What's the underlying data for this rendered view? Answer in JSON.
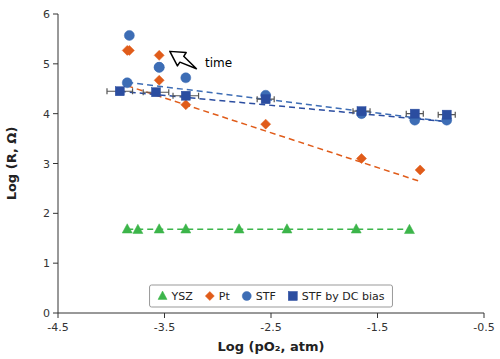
{
  "chart_data": {
    "type": "scatter",
    "xlabel": "Log (pO₂, atm)",
    "ylabel": "Log (R, Ω)",
    "xlim": [
      -4.5,
      -0.5
    ],
    "ylim": [
      0,
      6
    ],
    "xticks": [
      -4.5,
      -3.5,
      -2.5,
      -1.5,
      -0.5
    ],
    "yticks": [
      0,
      1,
      2,
      3,
      4,
      5,
      6
    ],
    "grid": false,
    "legend": "lower center",
    "series": [
      {
        "name": "YSZ",
        "type": "scatter",
        "color": "#3cb54a",
        "marker": "triangle",
        "x": [
          -3.85,
          -3.75,
          -3.55,
          -3.3,
          -2.8,
          -2.35,
          -1.7,
          -1.2
        ],
        "values": [
          1.68,
          1.67,
          1.68,
          1.68,
          1.68,
          1.68,
          1.68,
          1.67
        ]
      },
      {
        "type": "line",
        "color": "#3cb54a",
        "line_style": "dashed",
        "x": [
          -3.85,
          -1.2
        ],
        "values": [
          1.68,
          1.68
        ]
      },
      {
        "name": "Pt",
        "type": "scatter",
        "color": "#e05c1a",
        "marker": "diamond",
        "x": [
          -3.85,
          -3.55,
          -3.3,
          -2.55,
          -1.65,
          -1.1
        ],
        "values": [
          5.27,
          4.67,
          4.18,
          3.79,
          3.1,
          2.87
        ]
      },
      {
        "type": "line",
        "color": "#e05c1a",
        "line_style": "dashed",
        "x": [
          -3.85,
          -1.1
        ],
        "values": [
          4.56,
          2.64
        ]
      },
      {
        "name": "STF",
        "type": "scatter",
        "color": "#3d6db5",
        "marker": "circle",
        "x": [
          -3.85,
          -3.55,
          -3.3,
          -2.55,
          -1.65,
          -1.15,
          -0.85
        ],
        "values": [
          4.62,
          4.93,
          4.72,
          4.37,
          4.0,
          3.87,
          3.87
        ]
      },
      {
        "type": "scatter",
        "color": "#3d6db5",
        "marker": "circle",
        "x": [
          -3.83,
          -3.55
        ],
        "values": [
          5.57,
          4.93
        ]
      },
      {
        "type": "line",
        "color": "#3d6db5",
        "line_style": "dashed",
        "x": [
          -3.85,
          -0.85
        ],
        "values": [
          4.63,
          3.84
        ]
      },
      {
        "name": "STF by DC bias",
        "type": "scatter",
        "color": "#2b4da0",
        "marker": "square",
        "x": [
          -3.92,
          -3.58,
          -3.3,
          -2.55,
          -1.65,
          -1.15,
          -0.85
        ],
        "values": [
          4.45,
          4.43,
          4.36,
          4.29,
          4.05,
          4.0,
          3.98
        ],
        "xerr": [
          0.12,
          0.12,
          0.12,
          0.08,
          0.08,
          0.08,
          0.08
        ]
      },
      {
        "type": "line",
        "color": "#2b4da0",
        "line_style": "dashed",
        "x": [
          -3.92,
          -0.85
        ],
        "values": [
          4.45,
          3.84
        ]
      },
      {
        "type": "scatter",
        "color": "#e05c1a",
        "marker": "diamond",
        "x": [
          -3.83,
          -3.55
        ],
        "values": [
          5.27,
          5.17
        ]
      }
    ],
    "annotations": [
      {
        "text": "time",
        "x": -3.12,
        "y": 4.88,
        "arrow_x": -3.2,
        "arrow_y": 4.9,
        "arrow_to_x": -3.45,
        "arrow_to_y": 5.25
      }
    ]
  }
}
